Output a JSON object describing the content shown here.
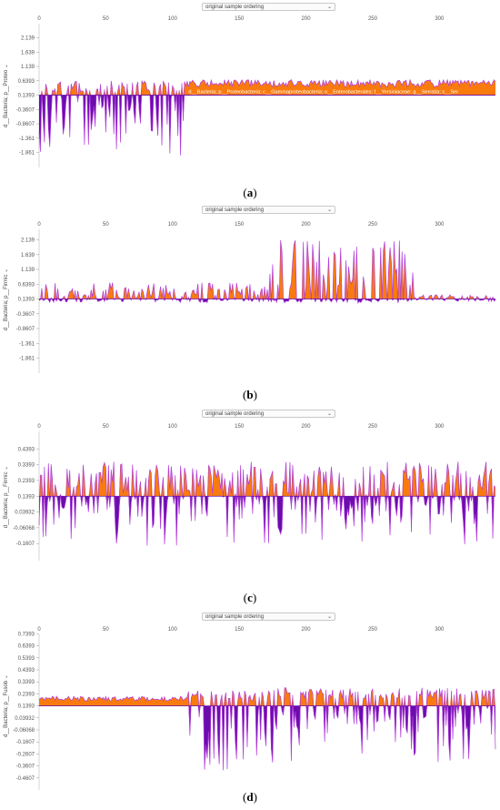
{
  "select_label": "original sample ordering",
  "chart_data": [
    {
      "type": "area",
      "caption": "a",
      "ylabel": "d__Bacteria; p__Proteo",
      "seq_label": "d__Bacteria; p__Proteobacteria; c__Gammaproteobacteria; o__Enterobacterales; f__Yersiniaceae; g__Serratia; s__Ser",
      "xlim": [
        0,
        342
      ],
      "x_ticks": [
        "0",
        "50",
        "100",
        "150",
        "200",
        "250",
        "300"
      ],
      "ylim": [
        -2.0,
        2.25
      ],
      "y_ticks": [
        "2.139",
        "1.639",
        "1.139",
        "0.6393",
        "0.1393",
        "-0.3607",
        "-0.8607",
        "-1.361",
        "-1.861"
      ],
      "baseline": 0.1393,
      "segments": [
        {
          "start": 0,
          "end": 110,
          "pos": [
            0.25,
            0.65
          ],
          "neg": [
            -2.0,
            -0.1
          ]
        },
        {
          "start": 110,
          "end": 342,
          "pos": [
            0.42,
            0.68
          ],
          "neg": null
        }
      ],
      "colors": {
        "positive": "#f97b0e",
        "negative": "#6a0dad",
        "line": "#b23ddb",
        "baseline": "#6a0dad"
      }
    },
    {
      "type": "area",
      "caption": "b",
      "ylabel": "d__Bacteria; p__Firmic",
      "xlim": [
        0,
        342
      ],
      "x_ticks": [
        "0",
        "50",
        "100",
        "150",
        "200",
        "250",
        "300"
      ],
      "ylim": [
        -2.0,
        2.25
      ],
      "y_ticks": [
        "2.139",
        "1.639",
        "1.139",
        "0.6393",
        "0.1393",
        "-0.3607",
        "-0.8607",
        "-1.361",
        "-1.861"
      ],
      "baseline": 0.1393,
      "segments": [
        {
          "start": 0,
          "end": 172,
          "pos": [
            0.15,
            0.7
          ],
          "neg": [
            0.0,
            0.12
          ]
        },
        {
          "start": 172,
          "end": 280,
          "pos": [
            0.5,
            2.14
          ],
          "neg": [
            0.0,
            0.12
          ]
        },
        {
          "start": 280,
          "end": 342,
          "pos": [
            0.15,
            0.28
          ],
          "neg": [
            0.05,
            0.12
          ]
        }
      ],
      "colors": {
        "positive": "#f97b0e",
        "negative": "#6a0dad",
        "line": "#b23ddb",
        "baseline": "#6a0dad"
      }
    },
    {
      "type": "area",
      "caption": "c",
      "ylabel": "d__Bacteria; p__Firmic",
      "xlim": [
        0,
        342
      ],
      "x_ticks": [
        "0",
        "50",
        "100",
        "150",
        "200",
        "250",
        "300"
      ],
      "ylim": [
        -0.2,
        0.47
      ],
      "y_ticks": [
        "0.4393",
        "0.3393",
        "0.2393",
        "0.1393",
        "0.03932",
        "-0.06068",
        "-0.1607"
      ],
      "baseline": 0.1393,
      "segments": [
        {
          "start": 0,
          "end": 342,
          "pos": [
            0.15,
            0.36
          ],
          "neg": [
            -0.18,
            0.13
          ]
        }
      ],
      "colors": {
        "positive": "#f97b0e",
        "negative": "#6a0dad",
        "line": "#b23ddb",
        "baseline": "#6a0dad"
      }
    },
    {
      "type": "area",
      "caption": "d",
      "ylabel": "d__Bacteria; p__Fusob",
      "xlim": [
        0,
        342
      ],
      "x_ticks": [
        "0",
        "50",
        "100",
        "150",
        "200",
        "250",
        "300"
      ],
      "ylim": [
        -0.47,
        0.75
      ],
      "y_ticks": [
        "0.7393",
        "0.6393",
        "0.5393",
        "0.4393",
        "0.3393",
        "0.2393",
        "0.1393",
        "0.03932",
        "-0.06068",
        "-0.1607",
        "-0.2607",
        "-0.3607",
        "-0.4607"
      ],
      "baseline": 0.1393,
      "segments": [
        {
          "start": 0,
          "end": 110,
          "pos": [
            0.18,
            0.22
          ],
          "neg": null
        },
        {
          "start": 110,
          "end": 175,
          "pos": [
            0.18,
            0.27
          ],
          "neg": [
            -0.42,
            -0.05
          ]
        },
        {
          "start": 175,
          "end": 342,
          "pos": [
            0.2,
            0.29
          ],
          "neg": [
            -0.33,
            0.1
          ]
        }
      ],
      "colors": {
        "positive": "#f97b0e",
        "negative": "#6a0dad",
        "line": "#b23ddb",
        "baseline": "#6a0dad"
      }
    }
  ]
}
